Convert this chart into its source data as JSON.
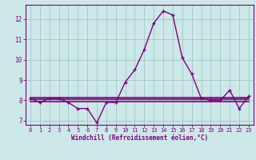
{
  "x": [
    0,
    1,
    2,
    3,
    4,
    5,
    6,
    7,
    8,
    9,
    10,
    11,
    12,
    13,
    14,
    15,
    16,
    17,
    18,
    19,
    20,
    21,
    22,
    23
  ],
  "y_main": [
    8.1,
    7.9,
    8.1,
    8.1,
    7.9,
    7.6,
    7.6,
    6.9,
    7.9,
    7.9,
    8.9,
    9.5,
    10.5,
    11.8,
    12.4,
    12.2,
    10.1,
    9.3,
    8.1,
    8.0,
    8.0,
    8.5,
    7.6,
    8.2
  ],
  "y_flat1": [
    8.15,
    8.15,
    8.15,
    8.15,
    8.15,
    8.15,
    8.15,
    8.15,
    8.15,
    8.15,
    8.15,
    8.15,
    8.15,
    8.15,
    8.15,
    8.15,
    8.15,
    8.15,
    8.15,
    8.15,
    8.15,
    8.15,
    8.15,
    8.15
  ],
  "y_flat2": [
    8.05,
    8.05,
    8.05,
    8.05,
    8.05,
    8.05,
    8.05,
    8.05,
    8.05,
    8.05,
    8.05,
    8.05,
    8.05,
    8.05,
    8.05,
    8.05,
    8.05,
    8.05,
    8.05,
    8.05,
    8.05,
    8.05,
    8.05,
    8.05
  ],
  "y_flat3": [
    7.95,
    7.95,
    7.95,
    7.95,
    7.95,
    7.95,
    7.95,
    7.95,
    7.95,
    7.95,
    7.95,
    7.95,
    7.95,
    7.95,
    7.95,
    7.95,
    7.95,
    7.95,
    7.95,
    7.95,
    7.95,
    7.95,
    7.95,
    7.95
  ],
  "line_color": "#800080",
  "bg_color": "#cce8e8",
  "grid_color": "#aacccc",
  "xlabel": "Windchill (Refroidissement éolien,°C)",
  "ylim": [
    6.8,
    12.7
  ],
  "yticks": [
    7,
    8,
    9,
    10,
    11,
    12
  ],
  "xticks": [
    0,
    1,
    2,
    3,
    4,
    5,
    6,
    7,
    8,
    9,
    10,
    11,
    12,
    13,
    14,
    15,
    16,
    17,
    18,
    19,
    20,
    21,
    22,
    23
  ],
  "marker": "+"
}
